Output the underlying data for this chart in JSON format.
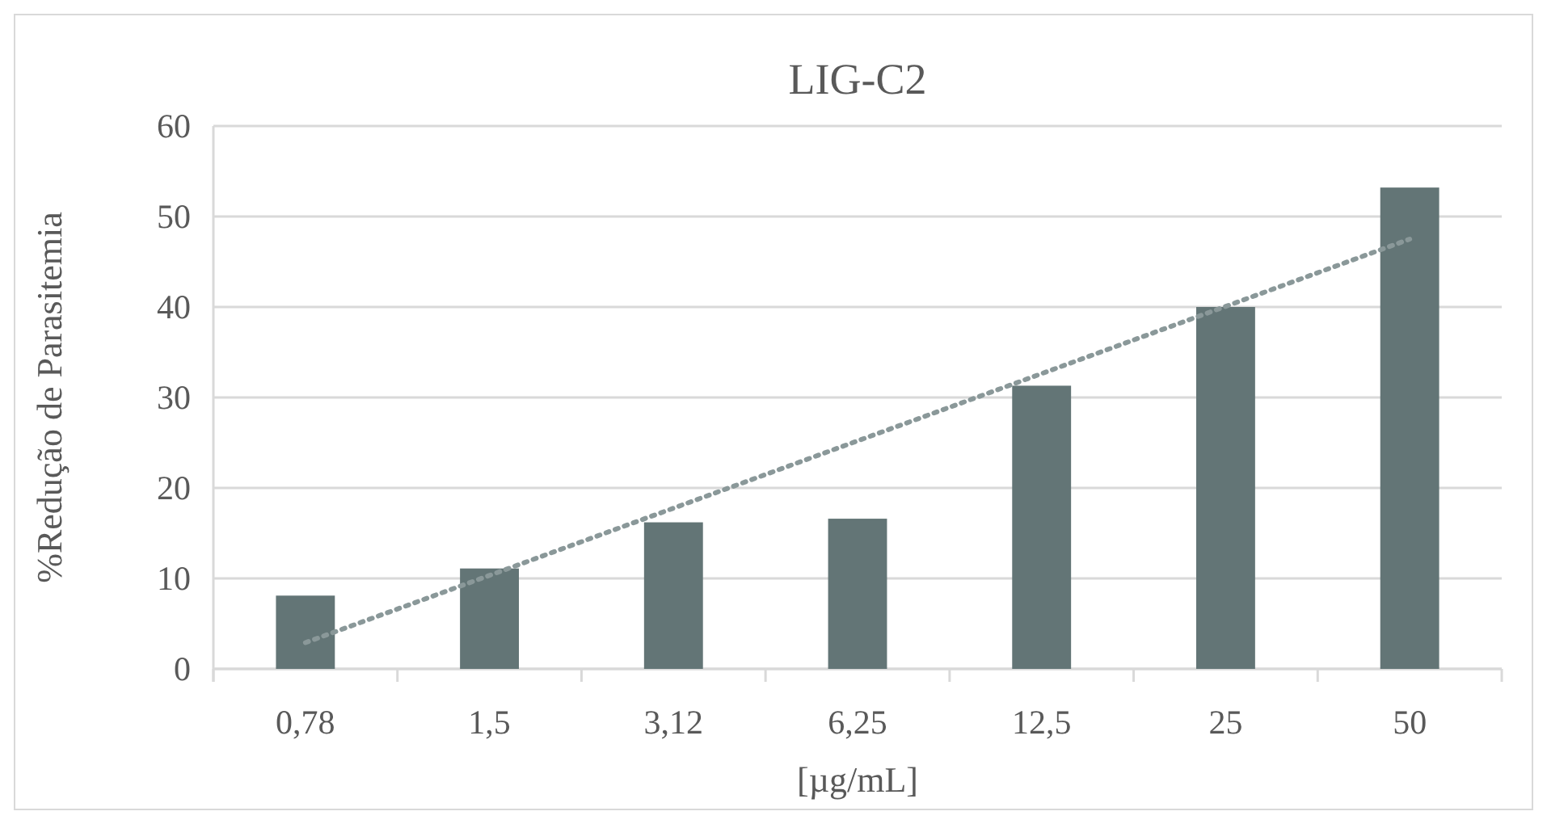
{
  "chart_data": {
    "type": "bar",
    "title": "LIG-C2",
    "xlabel": "[µg/mL]",
    "ylabel": "%Redução de Parasitemia",
    "categories": [
      "0,78",
      "1,5",
      "3,12",
      "6,25",
      "12,5",
      "25",
      "50"
    ],
    "series": [
      {
        "color": "#637576",
        "values": [
          8.1,
          11.1,
          16.2,
          16.6,
          31.3,
          40.0,
          53.2
        ]
      },
      {
        "type": "line",
        "x": [
          "0,78",
          "50"
        ],
        "values": [
          2.9,
          47.5
        ],
        "color": "#8a9899",
        "line_style": "dotted"
      }
    ],
    "ylim": [
      0,
      60
    ],
    "yticks": [
      0,
      10,
      20,
      30,
      40,
      50,
      60
    ],
    "grid": "y"
  }
}
